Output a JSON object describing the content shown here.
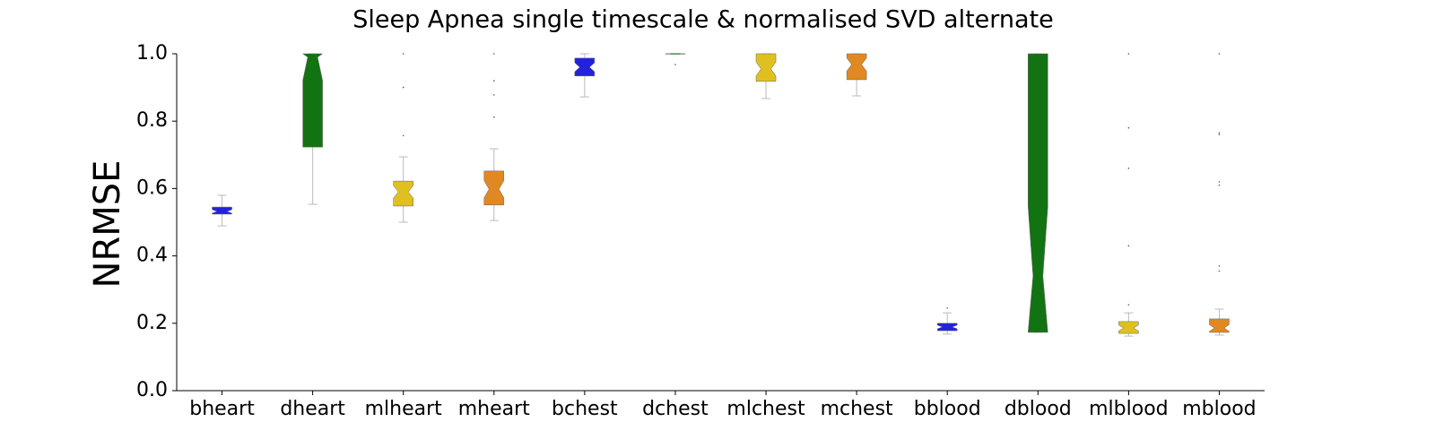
{
  "chart_data": {
    "type": "box",
    "title": "Sleep Apnea single timescale & normalised SVD alternate",
    "y_label": "NRMSE",
    "categories": [
      "bheart",
      "dheart",
      "mlheart",
      "mheart",
      "bchest",
      "dchest",
      "mlchest",
      "mchest",
      "bblood",
      "dblood",
      "mlblood",
      "mblood"
    ],
    "colors": [
      "#2222dd",
      "#127312",
      "#e0c020",
      "#e08822",
      "#2222dd",
      "#127312",
      "#e0c020",
      "#e08822",
      "#2222dd",
      "#127312",
      "#e0c020",
      "#e08822"
    ],
    "boxes": [
      {
        "whislo": 0.489,
        "q1": 0.524,
        "med": 0.532,
        "q3": 0.545,
        "whishi": 0.58,
        "fliers": []
      },
      {
        "whislo": 0.553,
        "q1": 0.723,
        "med": 0.99,
        "q3": 1.0,
        "whishi": 1.0,
        "fliers": []
      },
      {
        "whislo": 0.5,
        "q1": 0.548,
        "med": 0.59,
        "q3": 0.622,
        "whishi": 0.694,
        "fliers": [
          0.757,
          0.9,
          1.0
        ]
      },
      {
        "whislo": 0.505,
        "q1": 0.551,
        "med": 0.598,
        "q3": 0.652,
        "whishi": 0.718,
        "fliers": [
          0.812,
          0.878,
          0.92,
          1.0
        ]
      },
      {
        "whislo": 0.872,
        "q1": 0.934,
        "med": 0.96,
        "q3": 0.987,
        "whishi": 1.0,
        "fliers": []
      },
      {
        "whislo": 0.999,
        "q1": 0.999,
        "med": 1.0,
        "q3": 1.0,
        "whishi": 1.0,
        "fliers": [
          0.968
        ]
      },
      {
        "whislo": 0.867,
        "q1": 0.918,
        "med": 0.955,
        "q3": 1.0,
        "whishi": 1.0,
        "fliers": []
      },
      {
        "whislo": 0.875,
        "q1": 0.923,
        "med": 0.968,
        "q3": 1.0,
        "whishi": 1.0,
        "fliers": []
      },
      {
        "whislo": 0.168,
        "q1": 0.178,
        "med": 0.189,
        "q3": 0.2,
        "whishi": 0.231,
        "fliers": [
          0.245
        ]
      },
      {
        "whislo": 0.173,
        "q1": 0.173,
        "med": 0.34,
        "q3": 1.0,
        "whishi": 1.0,
        "fliers": []
      },
      {
        "whislo": 0.162,
        "q1": 0.17,
        "med": 0.186,
        "q3": 0.205,
        "whishi": 0.231,
        "fliers": [
          0.255,
          0.43,
          0.66,
          0.78,
          1.0
        ]
      },
      {
        "whislo": 0.165,
        "q1": 0.173,
        "med": 0.186,
        "q3": 0.213,
        "whishi": 0.242,
        "fliers": [
          0.355,
          0.37,
          0.61,
          0.62,
          0.76,
          0.765,
          1.0
        ]
      }
    ],
    "ylim": [
      0,
      1.0
    ],
    "yticks": [
      {
        "value": 0,
        "label": "0.0"
      },
      {
        "value": 0.2,
        "label": "0.2"
      },
      {
        "value": 0.4,
        "label": "0.4"
      },
      {
        "value": 0.6,
        "label": "0.6"
      },
      {
        "value": 0.8,
        "label": "0.8"
      },
      {
        "value": 1.0,
        "label": "1.0"
      }
    ]
  }
}
